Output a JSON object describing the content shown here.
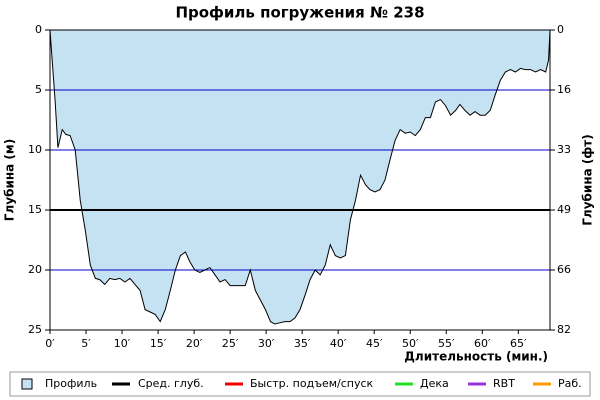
{
  "chart_data": {
    "type": "area",
    "title": "Профиль погружения № 238",
    "x_label": "Длительность (мин.)",
    "y_label": "Глубина (м)",
    "y2_label": "Глубина (фт)",
    "x": [
      0,
      0.3,
      0.7,
      1.1,
      1.7,
      2.2,
      2.8,
      3.5,
      4.2,
      4.9,
      5.6,
      6.3,
      6.9,
      7.6,
      8.3,
      9,
      9.7,
      10.4,
      11.1,
      11.8,
      12.5,
      13.2,
      13.9,
      14.6,
      15.3,
      16,
      16.7,
      17.4,
      18.1,
      18.8,
      19.4,
      20.1,
      20.8,
      21.5,
      22.2,
      22.9,
      23.6,
      24.3,
      25,
      25.7,
      26.4,
      27.1,
      27.8,
      28.5,
      29.2,
      29.9,
      30.6,
      31.2,
      31.9,
      32.6,
      33.3,
      34,
      34.7,
      35.4,
      36.1,
      36.8,
      37.5,
      38.2,
      38.9,
      39.6,
      40.3,
      41,
      41.7,
      42.4,
      43.1,
      43.8,
      44.4,
      45.1,
      45.8,
      46.5,
      47.2,
      47.9,
      48.6,
      49.3,
      50,
      50.7,
      51.4,
      52.1,
      52.8,
      53.5,
      54.2,
      54.9,
      55.6,
      56.3,
      56.9,
      57.6,
      58.3,
      59,
      59.7,
      60.4,
      61.1,
      61.8,
      62.5,
      63.2,
      63.9,
      64.6,
      65.3,
      66,
      66.7,
      67.4,
      68.1,
      68.8,
      69.2,
      69.4
    ],
    "series": [
      {
        "name": "Профиль",
        "color": "#c5e2f3",
        "line_color": "#000000",
        "values": [
          0,
          2.5,
          5.8,
          9.8,
          8.3,
          8.7,
          8.8,
          10,
          14.2,
          16.7,
          19.6,
          20.7,
          20.8,
          21.2,
          20.7,
          20.8,
          20.7,
          21,
          20.7,
          21.2,
          21.7,
          23.3,
          23.5,
          23.7,
          24.3,
          23.3,
          21.7,
          20,
          18.8,
          18.5,
          19.3,
          20,
          20.2,
          20,
          19.8,
          20.4,
          21,
          20.8,
          21.3,
          21.3,
          21.3,
          21.3,
          20,
          21.7,
          22.5,
          23.3,
          24.3,
          24.5,
          24.4,
          24.3,
          24.3,
          24,
          23.3,
          22.1,
          20.8,
          20,
          20.4,
          19.6,
          17.9,
          18.8,
          19,
          18.8,
          15.8,
          14.2,
          12.1,
          12.9,
          13.3,
          13.5,
          13.3,
          12.5,
          10.8,
          9.2,
          8.3,
          8.6,
          8.5,
          8.8,
          8.3,
          7.3,
          7.3,
          6,
          5.8,
          6.3,
          7.1,
          6.7,
          6.2,
          6.7,
          7.1,
          6.8,
          7.1,
          7.1,
          6.7,
          5.4,
          4.2,
          3.5,
          3.3,
          3.5,
          3.2,
          3.3,
          3.3,
          3.5,
          3.3,
          3.5,
          2.5,
          0
        ]
      }
    ],
    "average_depth": {
      "name": "Сред. глуб.",
      "color": "#000000",
      "value": 15
    },
    "other_markers": [
      {
        "name": "Быстр. подъем/спуск",
        "color": "#ee0000"
      },
      {
        "name": "Дека",
        "color": "#22dd22"
      },
      {
        "name": "RBT",
        "color": "#9933dd"
      },
      {
        "name": "Раб.",
        "color": "#ff9900"
      }
    ],
    "xlim": [
      0,
      69.4
    ],
    "xticks": [
      {
        "value": 0,
        "label": "0′"
      },
      {
        "value": 5,
        "label": "5′"
      },
      {
        "value": 10,
        "label": "10′"
      },
      {
        "value": 15,
        "label": "15′"
      },
      {
        "value": 20,
        "label": "20′"
      },
      {
        "value": 25,
        "label": "25′"
      },
      {
        "value": 30,
        "label": "30′"
      },
      {
        "value": 35,
        "label": "35′"
      },
      {
        "value": 40,
        "label": "40′"
      },
      {
        "value": 45,
        "label": "45′"
      },
      {
        "value": 50,
        "label": "50′"
      },
      {
        "value": 55,
        "label": "55′"
      },
      {
        "value": 60,
        "label": "60′"
      },
      {
        "value": 65,
        "label": "65′"
      }
    ],
    "ylim": [
      0,
      25
    ],
    "y_inverted": true,
    "yticks": [
      0,
      5,
      10,
      15,
      20,
      25
    ],
    "y2lim": [
      0,
      82
    ],
    "y2ticks": [
      0,
      {
        "value": 16.4,
        "label": "16"
      },
      {
        "value": 32.8,
        "label": "33"
      },
      {
        "value": 49.2,
        "label": "49"
      },
      {
        "value": 65.6,
        "label": "66"
      },
      82
    ],
    "grid": true,
    "grid_color": "#0000cc"
  }
}
